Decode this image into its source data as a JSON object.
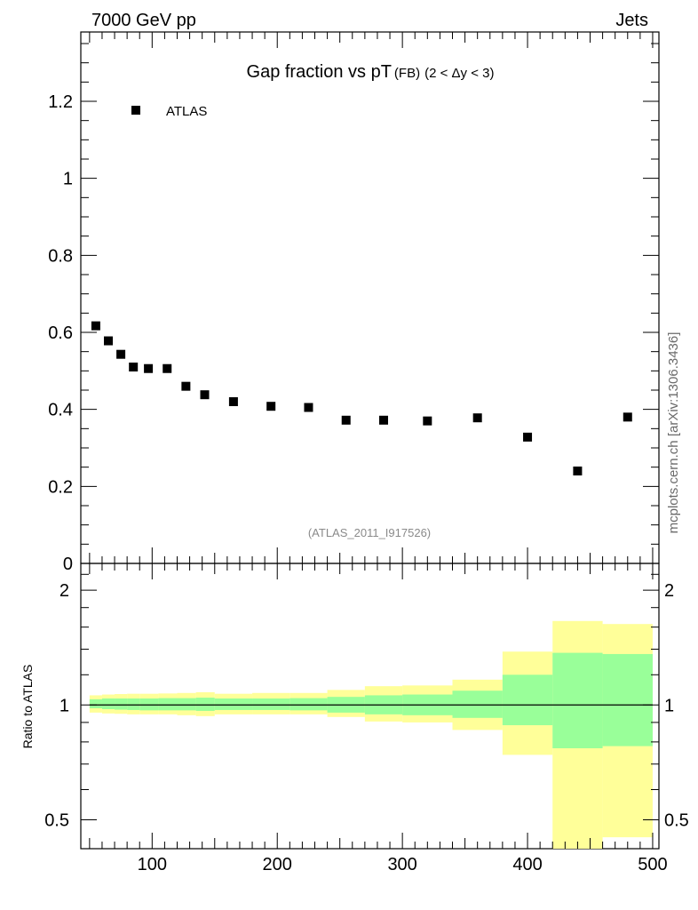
{
  "header": {
    "left": "7000 GeV pp",
    "right": "Jets"
  },
  "side_label": "mcplots.cern.ch [arXiv:1306.3436]",
  "analysis_id": "(ATLAS_2011_I917526)",
  "legend": {
    "label": "ATLAS"
  },
  "title": {
    "main": "Gap fraction vs pT",
    "sub1": "(FB)",
    "sub2": "(2 < Δy < 3)"
  },
  "chart_data": [
    {
      "type": "scatter",
      "title": "Gap fraction vs pT (FB) (2 < Δy < 3)",
      "xlabel": "",
      "ylabel": "",
      "xlim": [
        43,
        505
      ],
      "ylim": [
        0,
        1.38
      ],
      "y_ticks": [
        0,
        0.2,
        0.4,
        0.6,
        0.8,
        1,
        1.2
      ],
      "y_tick_labels": [
        "0",
        "0.2",
        "0.4",
        "0.6",
        "0.8",
        "1",
        "1.2"
      ],
      "series": [
        {
          "name": "ATLAS",
          "x": [
            55,
            65,
            75,
            85,
            97,
            112,
            127,
            142,
            165,
            195,
            225,
            255,
            285,
            320,
            360,
            400,
            440,
            480
          ],
          "y": [
            0.617,
            0.578,
            0.543,
            0.51,
            0.506,
            0.506,
            0.46,
            0.438,
            0.42,
            0.408,
            0.405,
            0.372,
            0.372,
            0.37,
            0.378,
            0.328,
            0.24,
            0.38
          ]
        }
      ]
    },
    {
      "type": "area",
      "title": "",
      "ylabel": "Ratio to ATLAS",
      "xlim": [
        43,
        505
      ],
      "ylim": [
        0.42,
        2.35
      ],
      "yscale": "log",
      "x_ticks": [
        100,
        200,
        300,
        400,
        500
      ],
      "x_tick_labels": [
        "100",
        "200",
        "300",
        "400",
        "500"
      ],
      "y_ticks": [
        0.5,
        1,
        2
      ],
      "y_tick_labels": [
        "0.5",
        "1",
        "2"
      ],
      "reference_line": 1,
      "bins": [
        {
          "lo": 50,
          "hi": 60,
          "stat_lo": 0.98,
          "stat_hi": 1.035,
          "tot_lo": 0.955,
          "tot_hi": 1.06
        },
        {
          "lo": 60,
          "hi": 70,
          "stat_lo": 0.975,
          "stat_hi": 1.04,
          "tot_lo": 0.95,
          "tot_hi": 1.065
        },
        {
          "lo": 70,
          "hi": 80,
          "stat_lo": 0.972,
          "stat_hi": 1.04,
          "tot_lo": 0.948,
          "tot_hi": 1.068
        },
        {
          "lo": 80,
          "hi": 90,
          "stat_lo": 0.97,
          "stat_hi": 1.04,
          "tot_lo": 0.945,
          "tot_hi": 1.07
        },
        {
          "lo": 90,
          "hi": 105,
          "stat_lo": 0.968,
          "stat_hi": 1.04,
          "tot_lo": 0.945,
          "tot_hi": 1.07
        },
        {
          "lo": 105,
          "hi": 120,
          "stat_lo": 0.968,
          "stat_hi": 1.042,
          "tot_lo": 0.945,
          "tot_hi": 1.072
        },
        {
          "lo": 120,
          "hi": 135,
          "stat_lo": 0.968,
          "stat_hi": 1.042,
          "tot_lo": 0.94,
          "tot_hi": 1.075
        },
        {
          "lo": 135,
          "hi": 150,
          "stat_lo": 0.965,
          "stat_hi": 1.045,
          "tot_lo": 0.935,
          "tot_hi": 1.08
        },
        {
          "lo": 150,
          "hi": 180,
          "stat_lo": 0.97,
          "stat_hi": 1.04,
          "tot_lo": 0.945,
          "tot_hi": 1.07
        },
        {
          "lo": 180,
          "hi": 210,
          "stat_lo": 0.97,
          "stat_hi": 1.04,
          "tot_lo": 0.945,
          "tot_hi": 1.075
        },
        {
          "lo": 210,
          "hi": 240,
          "stat_lo": 0.968,
          "stat_hi": 1.042,
          "tot_lo": 0.945,
          "tot_hi": 1.075
        },
        {
          "lo": 240,
          "hi": 270,
          "stat_lo": 0.955,
          "stat_hi": 1.05,
          "tot_lo": 0.93,
          "tot_hi": 1.095
        },
        {
          "lo": 270,
          "hi": 300,
          "stat_lo": 0.945,
          "stat_hi": 1.06,
          "tot_lo": 0.905,
          "tot_hi": 1.12
        },
        {
          "lo": 300,
          "hi": 340,
          "stat_lo": 0.94,
          "stat_hi": 1.065,
          "tot_lo": 0.9,
          "tot_hi": 1.125
        },
        {
          "lo": 340,
          "hi": 380,
          "stat_lo": 0.925,
          "stat_hi": 1.09,
          "tot_lo": 0.86,
          "tot_hi": 1.165
        },
        {
          "lo": 380,
          "hi": 420,
          "stat_lo": 0.885,
          "stat_hi": 1.2,
          "tot_lo": 0.74,
          "tot_hi": 1.38
        },
        {
          "lo": 420,
          "hi": 460,
          "stat_lo": 0.77,
          "stat_hi": 1.37,
          "tot_lo": 0.42,
          "tot_hi": 1.66
        },
        {
          "lo": 460,
          "hi": 500,
          "stat_lo": 0.78,
          "stat_hi": 1.36,
          "tot_lo": 0.45,
          "tot_hi": 1.63
        }
      ]
    }
  ],
  "colors": {
    "stat_band": "#99ff99",
    "total_band": "#ffff99",
    "axis": "#000000"
  }
}
